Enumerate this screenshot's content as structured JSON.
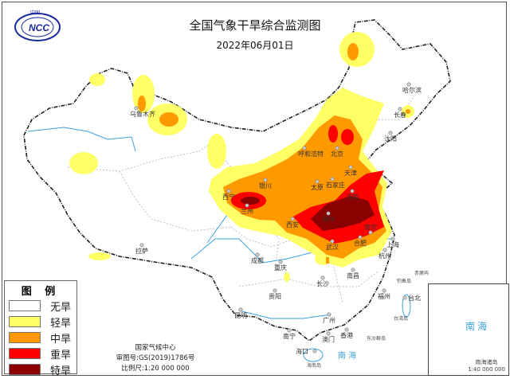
{
  "header": {
    "title": "全国气象干旱综合监测图",
    "date": "2022年06月01日",
    "logo_text": "NCC",
    "logo_top_text": "中国"
  },
  "legend": {
    "title": "图 例",
    "items": [
      {
        "label": "无旱",
        "color": "#ffffff"
      },
      {
        "label": "轻旱",
        "color": "#ffff66"
      },
      {
        "label": "中旱",
        "color": "#ff9900"
      },
      {
        "label": "重旱",
        "color": "#ff0000"
      },
      {
        "label": "特旱",
        "color": "#8b0000"
      }
    ]
  },
  "credits": {
    "org": "国家气候中心",
    "approval": "审图号:GS(2019)1786号",
    "scale": "比例尺:1:20 000 000"
  },
  "inset": {
    "sea_label": "南海",
    "caption": "南海诸岛",
    "scale": "1:40 000 000"
  },
  "map": {
    "cities": [
      "乌鲁木齐",
      "拉萨",
      "西宁",
      "兰州",
      "银川",
      "呼和浩特",
      "北京",
      "天津",
      "石家庄",
      "太原",
      "济南",
      "郑州",
      "西安",
      "南京",
      "合肥",
      "武汉",
      "上海",
      "杭州",
      "成都",
      "重庆",
      "南昌",
      "长沙",
      "贵阳",
      "昆明",
      "广州",
      "南宁",
      "澳门",
      "香港",
      "海口",
      "福州",
      "台北",
      "哈尔滨",
      "长春",
      "沈阳"
    ],
    "small_labels": [
      "台湾岛",
      "钓鱼岛",
      "赤尾屿",
      "东沙群岛",
      "海南岛"
    ],
    "sea_label": "南 海",
    "colors": {
      "border": "#222222",
      "province": "#999999",
      "river": "#3aa0e0"
    }
  }
}
